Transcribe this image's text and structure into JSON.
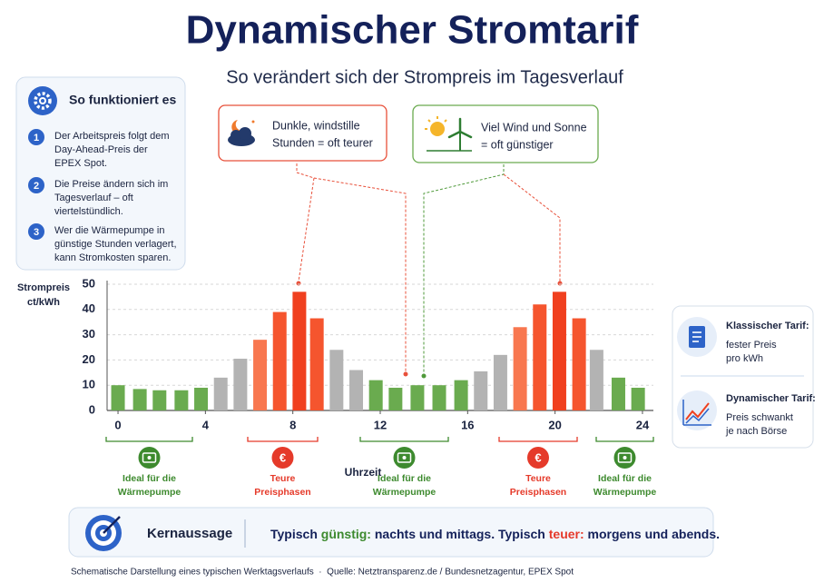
{
  "header": {
    "title": "Dynamischer Stromtarif",
    "subtitle": "So verändert sich der Strompreis im Tagesverlauf"
  },
  "info_box": {
    "title": "So funktioniert es",
    "steps": [
      {
        "number": "1",
        "lines": [
          "Der Arbeitspreis folgt dem",
          "Day-Ahead-Preis der",
          "EPEX Spot."
        ]
      },
      {
        "number": "2",
        "lines": [
          "Die Preise ändern sich im",
          "Tagesverlauf – oft",
          "viertelstündlich."
        ]
      },
      {
        "number": "3",
        "lines": [
          "Wer die Wärmepumpe in",
          "günstige Stunden verlagert,",
          "kann Stromkosten sparen."
        ]
      }
    ]
  },
  "callouts": [
    {
      "tone": "expensive",
      "lines": [
        "Dunkle, windstille",
        "Stunden = oft teurer"
      ]
    },
    {
      "tone": "cheap",
      "lines": [
        "Viel Wind und Sonne",
        "= oft günstiger"
      ]
    }
  ],
  "chart_data": {
    "type": "bar",
    "y_label": [
      "Strompreis",
      "ct/kWh"
    ],
    "x_label": "Uhrzeit",
    "x": [
      0,
      1.0,
      1.9,
      2.9,
      3.8,
      4.7,
      5.6,
      6.5,
      7.4,
      8.3,
      9.1,
      10.0,
      10.9,
      11.8,
      12.7,
      13.7,
      14.7,
      15.7,
      16.6,
      17.5,
      18.4,
      19.3,
      20.2,
      21.1,
      21.9,
      22.9,
      23.8
    ],
    "values": [
      10,
      8.5,
      8,
      8,
      9,
      13,
      20.5,
      28,
      39,
      47,
      36.5,
      24,
      16,
      12,
      9,
      10,
      10,
      12,
      15.5,
      22,
      33,
      42,
      47,
      36.5,
      24,
      13,
      9
    ],
    "colors": [
      "#6aab4f",
      "#6aab4f",
      "#6aab4f",
      "#6aab4f",
      "#6aab4f",
      "#b3b3b3",
      "#b3b3b3",
      "#f8774f",
      "#f5552e",
      "#f0401f",
      "#f5552e",
      "#b3b3b3",
      "#b3b3b3",
      "#6aab4f",
      "#6aab4f",
      "#6aab4f",
      "#6aab4f",
      "#6aab4f",
      "#b3b3b3",
      "#b3b3b3",
      "#f8774f",
      "#f5552e",
      "#f0401f",
      "#f5552e",
      "#b3b3b3",
      "#6aab4f",
      "#6aab4f"
    ],
    "xlim": [
      -0.5,
      24.5
    ],
    "xticks": [
      0,
      4,
      8,
      12,
      16,
      20,
      24
    ],
    "ylim": [
      0,
      50
    ],
    "yticks": [
      0,
      10,
      20,
      30,
      40,
      50
    ],
    "grid": true
  },
  "ranges": [
    {
      "tone": "cheap",
      "lines": [
        "Ideal für die",
        "Wärmepumpe"
      ]
    },
    {
      "tone": "expensive",
      "icon": "€",
      "lines": [
        "Teure",
        "Preisphasen"
      ]
    },
    {
      "tone": "cheap",
      "lines": [
        "Ideal für die",
        "Wärmepumpe"
      ]
    },
    {
      "tone": "expensive",
      "icon": "€",
      "lines": [
        "Teure",
        "Preisphasen"
      ]
    },
    {
      "tone": "cheap",
      "lines": [
        "Ideal für die",
        "Wärmepumpe"
      ]
    }
  ],
  "tariffs": [
    {
      "title": "Klassischer Tarif:",
      "lines": [
        "fester Preis",
        "pro kWh"
      ]
    },
    {
      "title": "Dynamischer Tarif:",
      "lines": [
        "Preis schwankt",
        "je nach Börse"
      ]
    }
  ],
  "key_message": {
    "label": "Kernaussage",
    "parts": [
      {
        "text": "Typisch "
      },
      {
        "text": "günstig:",
        "tone": "cheap"
      },
      {
        "text": " nachts und mittags. Typisch "
      },
      {
        "text": "teuer:",
        "tone": "expensive"
      },
      {
        "text": " morgens und abends."
      }
    ]
  },
  "footer": "Schematische Darstellung eines typischen Werktagsverlaufs  ·  Quelle: Netztransparenz.de / Bundesnetzagentur, EPEX Spot"
}
